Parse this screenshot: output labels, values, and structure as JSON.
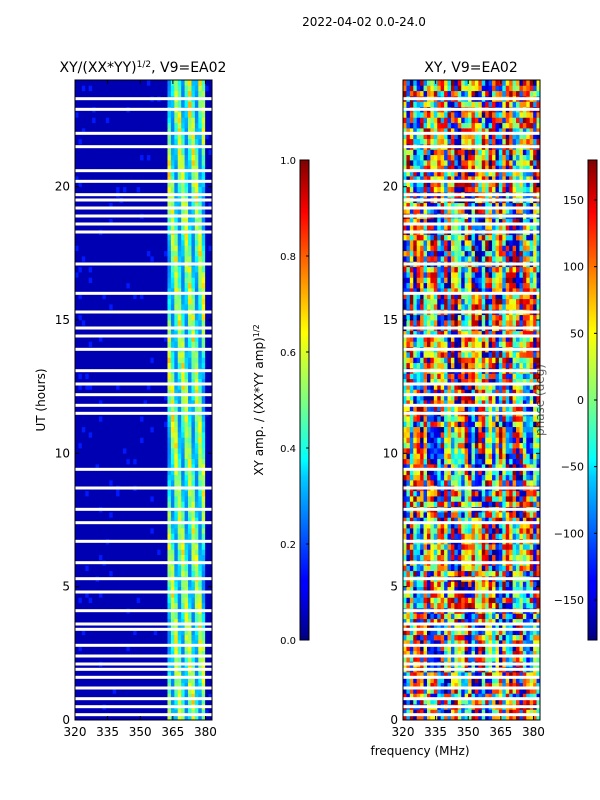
{
  "figure": {
    "suptitle": "2022-04-02 0.0-24.0",
    "xlabel": "frequency (MHz)"
  },
  "chart_data": [
    {
      "type": "heatmap",
      "title_main": "XY/(XX*YY)",
      "title_exp": "1/2",
      "title_tail": ", V9=EA02",
      "xlabel": "",
      "ylabel": "UT (hours)",
      "xlim": [
        320,
        383
      ],
      "ylim": [
        0,
        24
      ],
      "xticks": [
        320,
        335,
        350,
        365,
        380
      ],
      "yticks": [
        0,
        5,
        10,
        15,
        20
      ],
      "colorbar": {
        "label_main": "XY amp. / (XX*YY amp)",
        "label_exp": "1/2",
        "range": [
          0.0,
          1.0
        ],
        "ticks": [
          "0.0",
          "0.2",
          "0.4",
          "0.6",
          "0.8",
          "1.0"
        ],
        "tick_values": [
          0.0,
          0.2,
          0.4,
          0.6,
          0.8,
          1.0
        ],
        "colormap": "jet"
      },
      "flagged_rows_hours": [
        0.2,
        0.5,
        0.8,
        1.2,
        1.6,
        1.9,
        2.1,
        2.4,
        2.8,
        3.4,
        3.6,
        4.1,
        4.8,
        5.3,
        5.9,
        6.7,
        7.4,
        7.9,
        8.7,
        9.4,
        11.5,
        11.8,
        12.2,
        12.6,
        13.1,
        13.9,
        14.4,
        14.7,
        15.3,
        16.0,
        17.1,
        18.3,
        18.6,
        18.9,
        19.2,
        19.5,
        19.7,
        20.2,
        20.6,
        21.5,
        22.0,
        22.9,
        23.3
      ],
      "bright_band_mhz": [
        363,
        380
      ],
      "background_value": 0.05
    },
    {
      "type": "heatmap",
      "title_main": "XY, V9=EA02",
      "xlabel": "frequency (MHz)",
      "ylabel": "",
      "xlim": [
        320,
        383
      ],
      "ylim": [
        0,
        24
      ],
      "xticks": [
        320,
        335,
        350,
        365,
        380
      ],
      "yticks": [
        0,
        5,
        10,
        15,
        20
      ],
      "colorbar": {
        "label_main": "phase (deg)",
        "range": [
          -180,
          180
        ],
        "ticks": [
          "−150",
          "−100",
          "−50",
          "0",
          "50",
          "100",
          "150"
        ],
        "tick_values": [
          -150,
          -100,
          -50,
          0,
          50,
          100,
          150
        ],
        "colormap": "jet"
      },
      "flagged_rows_hours": [
        0.2,
        0.5,
        0.8,
        1.2,
        1.6,
        1.9,
        2.1,
        2.4,
        2.8,
        3.4,
        3.6,
        4.1,
        4.8,
        5.3,
        5.9,
        6.7,
        7.4,
        7.9,
        8.7,
        9.4,
        11.5,
        11.8,
        12.2,
        12.6,
        13.1,
        13.9,
        14.4,
        14.7,
        15.3,
        16.0,
        17.1,
        18.3,
        18.6,
        18.9,
        19.2,
        19.5,
        19.7,
        20.2,
        20.6,
        21.5,
        22.0,
        22.9,
        23.3
      ]
    }
  ]
}
